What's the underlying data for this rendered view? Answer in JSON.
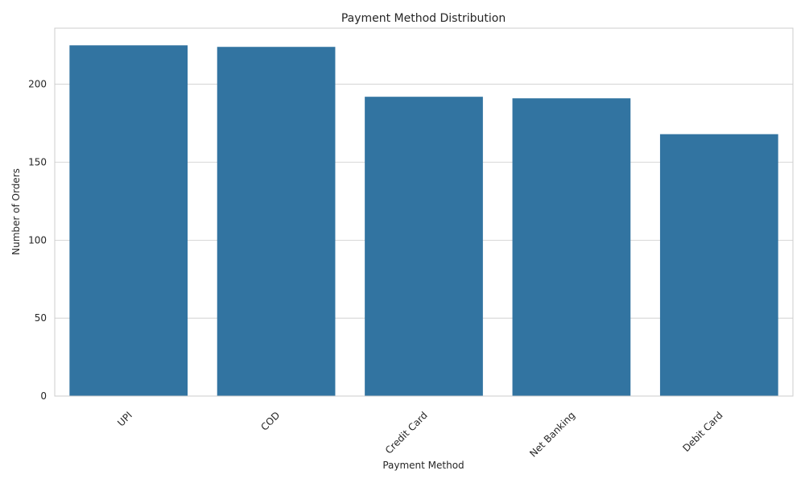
{
  "chart_data": {
    "type": "bar",
    "title": "Payment Method Distribution",
    "xlabel": "Payment Method",
    "ylabel": "Number of Orders",
    "categories": [
      "UPI",
      "COD",
      "Credit Card",
      "Net Banking",
      "Debit Card"
    ],
    "values": [
      225,
      224,
      192,
      191,
      168
    ],
    "ylim": [
      0,
      236
    ],
    "yticks": [
      0,
      50,
      100,
      150,
      200
    ],
    "grid": true,
    "bar_color": "#3274a1",
    "grid_color": "#cccccc"
  }
}
